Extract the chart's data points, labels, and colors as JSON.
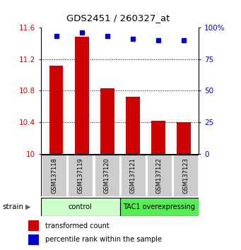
{
  "title": "GDS2451 / 260327_at",
  "samples": [
    "GSM137118",
    "GSM137119",
    "GSM137120",
    "GSM137121",
    "GSM137122",
    "GSM137123"
  ],
  "bar_values": [
    11.12,
    11.48,
    10.83,
    10.72,
    10.42,
    10.4
  ],
  "percentile_values": [
    93,
    96,
    93,
    91,
    90,
    90
  ],
  "bar_color": "#cc0000",
  "dot_color": "#0000cc",
  "ylim_left": [
    10.0,
    11.6
  ],
  "ylim_right": [
    0,
    100
  ],
  "yticks_left": [
    10.0,
    10.4,
    10.8,
    11.2,
    11.6
  ],
  "ytick_labels_left": [
    "10",
    "10.4",
    "10.8",
    "11.2",
    "11.6"
  ],
  "yticks_right": [
    0,
    25,
    50,
    75,
    100
  ],
  "ytick_labels_right": [
    "0",
    "25",
    "50",
    "75",
    "100%"
  ],
  "groups": [
    {
      "label": "control",
      "start": 0,
      "end": 2,
      "color": "#ccffcc"
    },
    {
      "label": "TAC1 overexpressing",
      "start": 3,
      "end": 5,
      "color": "#55ee55"
    }
  ],
  "strain_label": "strain",
  "legend": [
    {
      "color": "#cc0000",
      "label": "transformed count"
    },
    {
      "color": "#0000cc",
      "label": "percentile rank within the sample"
    }
  ],
  "bg_color": "#ffffff",
  "tick_area_bg": "#cccccc",
  "bar_width": 0.55
}
